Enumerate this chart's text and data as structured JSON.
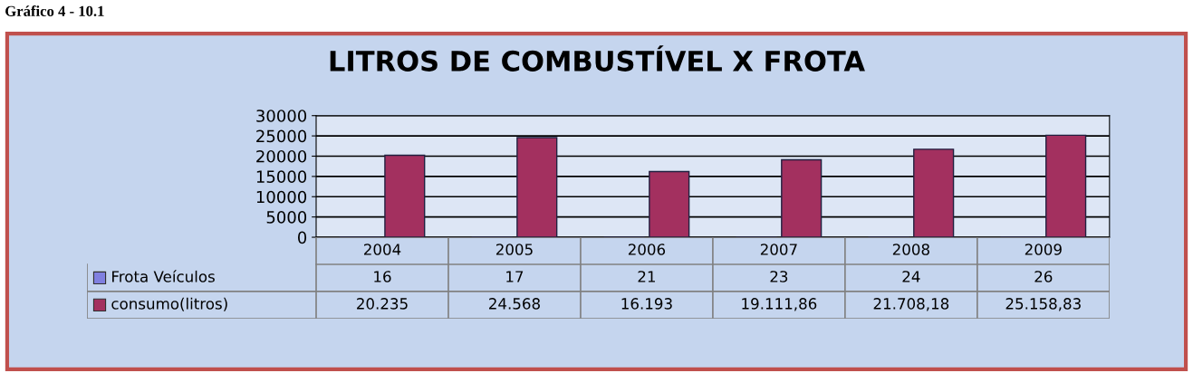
{
  "chart_data": {
    "type": "bar",
    "title": "LITROS DE COMBUSTÍVEL X FROTA",
    "annotations": [
      "Gráfico 4 - 10.1"
    ],
    "categories": [
      "2004",
      "2005",
      "2006",
      "2007",
      "2008",
      "2009"
    ],
    "series": [
      {
        "name": "Frota Veículos",
        "color": "#8080e0",
        "values": [
          16,
          17,
          21,
          23,
          24,
          26
        ],
        "value_labels": [
          "16",
          "17",
          "21",
          "23",
          "24",
          "26"
        ]
      },
      {
        "name": "consumo(litros)",
        "color": "#a3305f",
        "values": [
          20235,
          24568,
          16193,
          19111.86,
          21708.18,
          25158.83
        ],
        "value_labels": [
          "20.235",
          "24.568",
          "16.193",
          "19.111,86",
          "21.708,18",
          "25.158,83"
        ]
      }
    ],
    "ylim": [
      0,
      30000
    ],
    "yticks": [
      0,
      5000,
      10000,
      15000,
      20000,
      25000,
      30000
    ],
    "grid": "y",
    "legend": "bottom"
  }
}
